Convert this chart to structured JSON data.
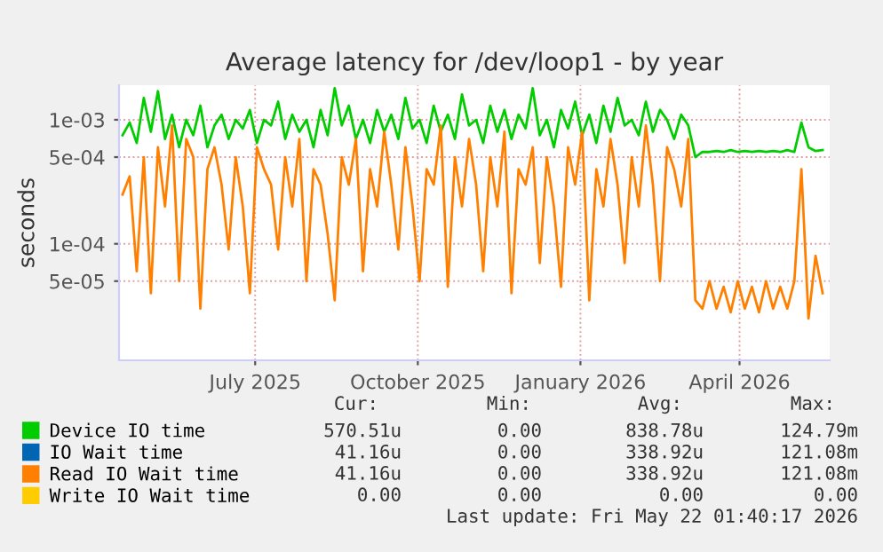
{
  "chart_data": {
    "type": "line",
    "title": "Average latency for /dev/loop1 - by year",
    "ylabel": "seconds",
    "x": [
      "2025-04-17",
      "2025-04-21",
      "2025-04-25",
      "2025-04-29",
      "2025-05-03",
      "2025-05-07",
      "2025-05-11",
      "2025-05-15",
      "2025-05-19",
      "2025-05-23",
      "2025-05-27",
      "2025-05-31",
      "2025-06-04",
      "2025-06-08",
      "2025-06-12",
      "2025-06-16",
      "2025-06-20",
      "2025-06-24",
      "2025-06-28",
      "2025-07-02",
      "2025-07-06",
      "2025-07-10",
      "2025-07-14",
      "2025-07-18",
      "2025-07-22",
      "2025-07-26",
      "2025-07-30",
      "2025-08-03",
      "2025-08-07",
      "2025-08-11",
      "2025-08-15",
      "2025-08-19",
      "2025-08-23",
      "2025-08-27",
      "2025-08-31",
      "2025-09-04",
      "2025-09-08",
      "2025-09-12",
      "2025-09-16",
      "2025-09-20",
      "2025-09-24",
      "2025-09-28",
      "2025-10-02",
      "2025-10-06",
      "2025-10-10",
      "2025-10-14",
      "2025-10-18",
      "2025-10-22",
      "2025-10-26",
      "2025-10-30",
      "2025-11-03",
      "2025-11-07",
      "2025-11-11",
      "2025-11-15",
      "2025-11-19",
      "2025-11-23",
      "2025-11-27",
      "2025-12-01",
      "2025-12-05",
      "2025-12-09",
      "2025-12-13",
      "2025-12-17",
      "2025-12-21",
      "2025-12-25",
      "2025-12-29",
      "2026-01-02",
      "2026-01-06",
      "2026-01-10",
      "2026-01-14",
      "2026-01-18",
      "2026-01-22",
      "2026-01-26",
      "2026-01-30",
      "2026-02-03",
      "2026-02-07",
      "2026-02-11",
      "2026-02-15",
      "2026-02-19",
      "2026-02-23",
      "2026-02-27",
      "2026-03-03",
      "2026-03-07",
      "2026-03-11",
      "2026-03-15",
      "2026-03-19",
      "2026-03-23",
      "2026-03-27",
      "2026-03-31",
      "2026-04-04",
      "2026-04-08",
      "2026-04-12",
      "2026-04-16",
      "2026-04-20",
      "2026-04-24",
      "2026-04-28",
      "2026-05-02",
      "2026-05-06",
      "2026-05-10",
      "2026-05-14",
      "2026-05-18"
    ],
    "series": [
      {
        "name": "Device IO time",
        "color": "#00cc00",
        "values": [
          0.00075,
          0.00095,
          0.00065,
          0.0015,
          0.0008,
          0.0017,
          0.0007,
          0.0011,
          0.0006,
          0.001,
          0.00075,
          0.0013,
          0.0006,
          0.0009,
          0.0011,
          0.0007,
          0.001,
          0.00085,
          0.0012,
          0.00065,
          0.001,
          0.0009,
          0.0014,
          0.0007,
          0.0011,
          0.0008,
          0.001,
          0.0006,
          0.0012,
          0.00075,
          0.0018,
          0.0009,
          0.0013,
          0.0007,
          0.001,
          0.00065,
          0.0012,
          0.0008,
          0.0011,
          0.0007,
          0.0015,
          0.00085,
          0.001,
          0.00065,
          0.0013,
          0.0008,
          0.0011,
          0.0007,
          0.0016,
          0.0009,
          0.001,
          0.00065,
          0.0013,
          0.0008,
          0.0012,
          0.0007,
          0.0011,
          0.00085,
          0.0018,
          0.00075,
          0.001,
          0.0006,
          0.0012,
          0.00085,
          0.0014,
          0.00075,
          0.0011,
          0.00065,
          0.0013,
          0.0008,
          0.0015,
          0.0009,
          0.001,
          0.00075,
          0.0014,
          0.0008,
          0.0012,
          0.001,
          0.0007,
          0.0011,
          0.0009,
          0.0005,
          0.00055,
          0.00055,
          0.00056,
          0.00055,
          0.00057,
          0.00055,
          0.00056,
          0.00055,
          0.00056,
          0.00055,
          0.00056,
          0.00055,
          0.00057,
          0.00055,
          0.00095,
          0.0006,
          0.00056,
          0.00057
        ]
      },
      {
        "name": "IO Wait time",
        "color": "#0066b3",
        "values": [
          null,
          null,
          null,
          null,
          null,
          null,
          null,
          null,
          null,
          null,
          null,
          null,
          null,
          null,
          null,
          null,
          null,
          null,
          null,
          null,
          null,
          null,
          null,
          null,
          null,
          null,
          null,
          null,
          null,
          null,
          null,
          null,
          null,
          null,
          null,
          null,
          null,
          null,
          null,
          null,
          null,
          null,
          null,
          null,
          null,
          null,
          null,
          null,
          null,
          null,
          null,
          null,
          null,
          null,
          null,
          null,
          null,
          null,
          null,
          null,
          null,
          null,
          null,
          null,
          null,
          null,
          null,
          null,
          null,
          null,
          null,
          null,
          null,
          null,
          null,
          null,
          null,
          null,
          null,
          null,
          null,
          null,
          null,
          null,
          null,
          null,
          null,
          null,
          null,
          null,
          null,
          null,
          null,
          null,
          null,
          null,
          null,
          null,
          null,
          null
        ]
      },
      {
        "name": "Read IO Wait time",
        "color": "#ff8000",
        "values": [
          0.00025,
          0.00035,
          6e-05,
          0.0005,
          4e-05,
          0.0006,
          0.0002,
          0.0009,
          5e-05,
          0.0007,
          0.0005,
          3e-05,
          0.0004,
          0.0006,
          0.0003,
          9e-05,
          0.0005,
          0.0002,
          4e-05,
          0.0006,
          0.0004,
          0.0003,
          9e-05,
          0.0005,
          0.0002,
          0.0007,
          5e-05,
          0.0004,
          0.0003,
          0.00012,
          3.5e-05,
          0.0005,
          0.0003,
          0.0007,
          6e-05,
          0.0004,
          0.0002,
          0.0008,
          0.0003,
          9e-05,
          0.0006,
          0.0002,
          5e-05,
          0.0004,
          0.0003,
          0.0009,
          4.5e-05,
          0.0005,
          0.0002,
          0.0007,
          0.0003,
          6e-05,
          0.0005,
          0.0002,
          0.0008,
          4e-05,
          0.0004,
          0.0003,
          0.0006,
          7e-05,
          0.0005,
          0.0002,
          4.5e-05,
          0.0006,
          0.0003,
          0.0008,
          3.5e-05,
          0.0004,
          0.0002,
          0.0007,
          0.0003,
          7e-05,
          0.0005,
          0.0002,
          0.0009,
          0.0003,
          5e-05,
          0.0006,
          0.0004,
          0.0002,
          0.0007,
          3.5e-05,
          3e-05,
          5e-05,
          3e-05,
          4.5e-05,
          2.8e-05,
          5e-05,
          3e-05,
          4.5e-05,
          2.8e-05,
          5e-05,
          3e-05,
          4.5e-05,
          3e-05,
          5e-05,
          0.0004,
          2.5e-05,
          8e-05,
          4e-05
        ]
      },
      {
        "name": "Write IO Wait time",
        "color": "#ffcc00",
        "values": [
          null,
          null,
          null,
          null,
          null,
          null,
          null,
          null,
          null,
          null,
          null,
          null,
          null,
          null,
          null,
          null,
          null,
          null,
          null,
          null,
          null,
          null,
          null,
          null,
          null,
          null,
          null,
          null,
          null,
          null,
          null,
          null,
          null,
          null,
          null,
          null,
          null,
          null,
          null,
          null,
          null,
          null,
          null,
          null,
          null,
          null,
          null,
          null,
          null,
          null,
          null,
          null,
          null,
          null,
          null,
          null,
          null,
          null,
          null,
          null,
          null,
          null,
          null,
          null,
          null,
          null,
          null,
          null,
          null,
          null,
          null,
          null,
          null,
          null,
          null,
          null,
          null,
          null,
          null,
          null,
          null,
          null,
          null,
          null,
          null,
          null,
          null,
          null,
          null,
          null,
          null,
          null,
          null,
          null,
          null,
          null,
          null,
          null,
          null,
          null
        ]
      }
    ],
    "log": "y",
    "xlim": [
      "2025-04-15",
      "2026-05-22"
    ],
    "xticks": [
      {
        "value": "2025-07-01",
        "label": "July 2025"
      },
      {
        "value": "2025-10-01",
        "label": "October 2025"
      },
      {
        "value": "2026-01-01",
        "label": "January 2026"
      },
      {
        "value": "2026-04-01",
        "label": "April 2026"
      }
    ],
    "ylim": [
      1.15e-05,
      0.0019
    ],
    "yticks": [
      {
        "value": 5e-05,
        "label": "5e-05"
      },
      {
        "value": 0.0001,
        "label": "1e-04"
      },
      {
        "value": 0.0005,
        "label": "5e-04"
      },
      {
        "value": 0.001,
        "label": "1e-03"
      }
    ],
    "grid": true,
    "legend": "bottom",
    "annotations": [
      "Cur:",
      "Min:",
      "Avg:",
      "Max:",
      "570.51u",
      "0.00",
      "838.78u",
      "124.79m",
      "41.16u",
      "0.00",
      "338.92u",
      "121.08m",
      "41.16u",
      "0.00",
      "338.92u",
      "121.08m",
      "0.00",
      "0.00",
      "0.00",
      "0.00",
      "Last update: Fri May 22 01:40:17 2026"
    ]
  }
}
